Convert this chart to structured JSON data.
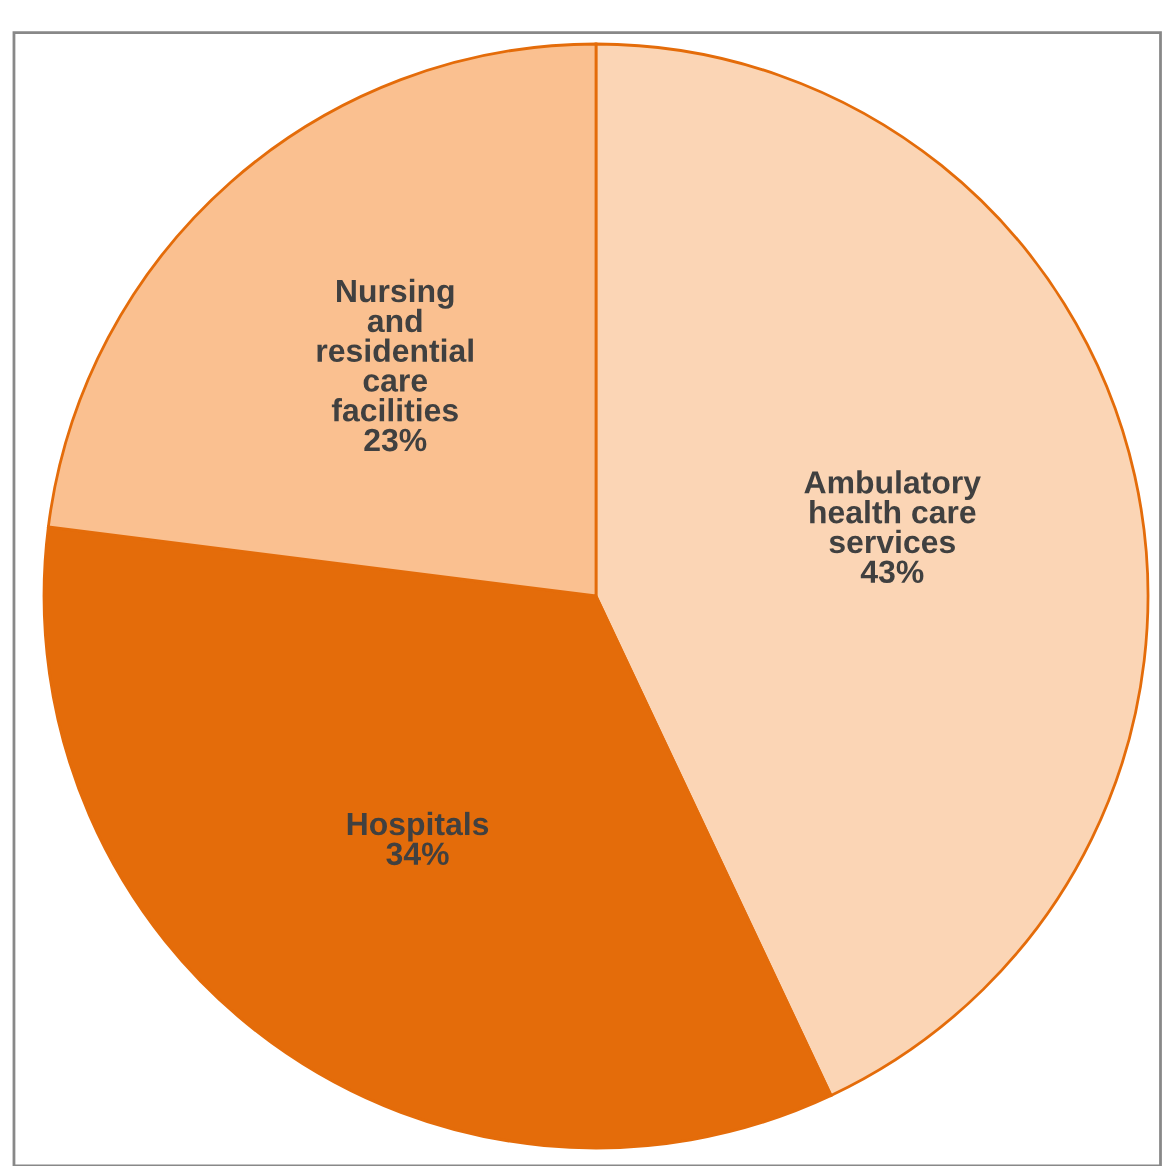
{
  "chart_data": {
    "type": "pie",
    "categories": [
      "Ambulatory\nhealth care\nservices",
      "Hospitals",
      "Nursing\nand\nresidential\ncare\nfacilities"
    ],
    "values": [
      43,
      34,
      23
    ],
    "value_labels": [
      "43%",
      "34%",
      "23%"
    ],
    "colors": [
      "#fbd5b5",
      "#e46c0a",
      "#fac090"
    ]
  }
}
